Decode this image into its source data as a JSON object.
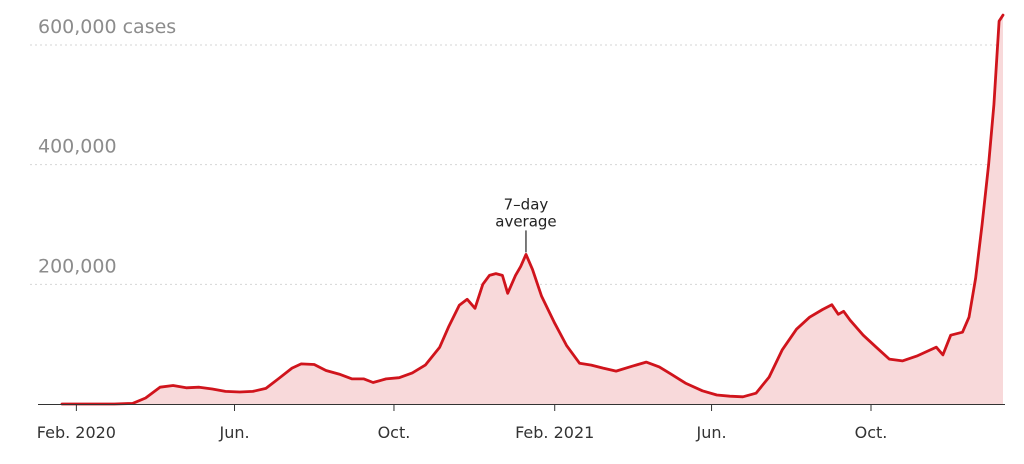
{
  "chart_data": {
    "type": "area",
    "title": "",
    "xlabel": "",
    "ylabel": "",
    "ylim": [
      0,
      600000
    ],
    "xlim": [
      "2020-01-21",
      "2022-01-10"
    ],
    "grid": true,
    "y_ticks": [
      {
        "value": 200000,
        "label": "200,000"
      },
      {
        "value": 400000,
        "label": "400,000"
      },
      {
        "value": 600000,
        "label": "600,000 cases"
      }
    ],
    "x_ticks": [
      {
        "date": "2020-02-01",
        "label": "Feb. 2020"
      },
      {
        "date": "2020-06-01",
        "label": "Jun."
      },
      {
        "date": "2020-10-01",
        "label": "Oct."
      },
      {
        "date": "2021-02-01",
        "label": "Feb. 2021"
      },
      {
        "date": "2021-06-01",
        "label": "Jun."
      },
      {
        "date": "2021-10-01",
        "label": "Oct."
      }
    ],
    "annotation": {
      "lines": [
        "7–day",
        "average"
      ],
      "date": "2021-01-10",
      "value": 250000
    },
    "colors": {
      "line": "#d0141c",
      "fill": "#f8d9da"
    },
    "series": [
      {
        "x": [
          "2020-01-21",
          "2020-02-15",
          "2020-03-01",
          "2020-03-15",
          "2020-03-25",
          "2020-04-05",
          "2020-04-15",
          "2020-04-25",
          "2020-05-05",
          "2020-05-15",
          "2020-05-25",
          "2020-06-05",
          "2020-06-15",
          "2020-06-25",
          "2020-07-05",
          "2020-07-15",
          "2020-07-22",
          "2020-08-01",
          "2020-08-10",
          "2020-08-20",
          "2020-08-30",
          "2020-09-08",
          "2020-09-15",
          "2020-09-25",
          "2020-10-05",
          "2020-10-15",
          "2020-10-25",
          "2020-11-05",
          "2020-11-12",
          "2020-11-20",
          "2020-11-26",
          "2020-12-02",
          "2020-12-08",
          "2020-12-13",
          "2020-12-18",
          "2020-12-23",
          "2020-12-27",
          "2021-01-02",
          "2021-01-06",
          "2021-01-10",
          "2021-01-15",
          "2021-01-22",
          "2021-02-01",
          "2021-02-10",
          "2021-02-20",
          "2021-03-01",
          "2021-03-10",
          "2021-03-20",
          "2021-04-01",
          "2021-04-12",
          "2021-04-22",
          "2021-05-01",
          "2021-05-12",
          "2021-05-25",
          "2021-06-05",
          "2021-06-15",
          "2021-06-25",
          "2021-07-05",
          "2021-07-15",
          "2021-07-25",
          "2021-08-05",
          "2021-08-15",
          "2021-08-25",
          "2021-09-01",
          "2021-09-06",
          "2021-09-10",
          "2021-09-15",
          "2021-09-25",
          "2021-10-05",
          "2021-10-15",
          "2021-10-25",
          "2021-11-05",
          "2021-11-15",
          "2021-11-20",
          "2021-11-25",
          "2021-12-01",
          "2021-12-10",
          "2021-12-15",
          "2021-12-20",
          "2021-12-25",
          "2021-12-30",
          "2022-01-03",
          "2022-01-07",
          "2022-01-10"
        ],
        "values": [
          0,
          0,
          0,
          1000,
          10000,
          28000,
          31000,
          27000,
          28000,
          25000,
          21000,
          20000,
          21000,
          26000,
          43000,
          60000,
          67000,
          66000,
          56000,
          50000,
          42000,
          42000,
          36000,
          42000,
          44000,
          52000,
          65000,
          95000,
          130000,
          165000,
          175000,
          160000,
          200000,
          215000,
          218000,
          215000,
          185000,
          215000,
          230000,
          250000,
          225000,
          180000,
          135000,
          98000,
          68000,
          65000,
          60000,
          55000,
          63000,
          70000,
          62000,
          50000,
          35000,
          22000,
          15000,
          13000,
          12000,
          18000,
          45000,
          90000,
          125000,
          145000,
          158000,
          166000,
          150000,
          155000,
          140000,
          115000,
          95000,
          75000,
          72000,
          80000,
          90000,
          95000,
          82000,
          115000,
          120000,
          145000,
          210000,
          300000,
          400000,
          500000,
          640000,
          650000
        ]
      }
    ]
  }
}
